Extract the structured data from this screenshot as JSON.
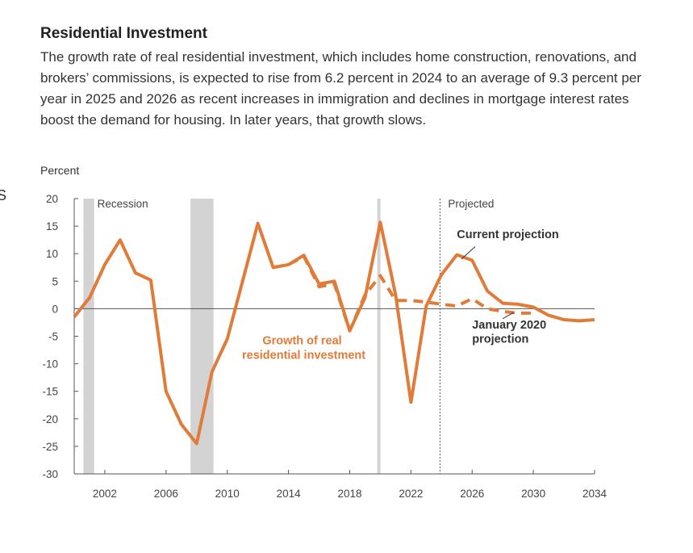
{
  "edge_glyph": "S",
  "title": "Residential Investment",
  "subtitle": "The growth rate of real residential investment, which includes home construction, renovations, and brokers’ commissions, is expected to rise from 6.2 percent in 2024 to an average of 9.3 percent per year in 2025 and 2026 as recent increases in immigration and declines in mortgage interest rates boost the demand for housing. In later years, that growth slows.",
  "colors": {
    "series": "#e07b39",
    "recession": "#d3d3d3",
    "axis": "#555555",
    "label": "#e07b39",
    "annotation": "#333333"
  },
  "chart_data": {
    "type": "line",
    "title": "",
    "xlabel": "",
    "ylabel": "Percent",
    "xlim": [
      2000,
      2034
    ],
    "ylim": [
      -30,
      20
    ],
    "x_ticks": [
      2002,
      2006,
      2010,
      2014,
      2018,
      2022,
      2026,
      2030,
      2034
    ],
    "y_ticks": [
      20,
      15,
      10,
      5,
      0,
      -5,
      -10,
      -15,
      -20,
      -25,
      -30
    ],
    "recession_label": "Recession",
    "projected_label": "Projected",
    "projected_start": 2023.9,
    "recessions": [
      [
        2000.6,
        2001.3
      ],
      [
        2007.6,
        2009.1
      ],
      [
        2019.8,
        2020.0
      ]
    ],
    "series": [
      {
        "name": "Growth of real residential investment",
        "style": "solid",
        "points": [
          [
            2000,
            -1.5
          ],
          [
            2001,
            2
          ],
          [
            2002,
            8
          ],
          [
            2003,
            12.5
          ],
          [
            2004,
            6.5
          ],
          [
            2005,
            5.2
          ],
          [
            2006,
            -15
          ],
          [
            2007,
            -21
          ],
          [
            2008,
            -24.5
          ],
          [
            2009,
            -11.5
          ],
          [
            2010,
            -5.5
          ],
          [
            2011,
            5
          ],
          [
            2012,
            15.5
          ],
          [
            2013,
            7.5
          ],
          [
            2014,
            8
          ],
          [
            2015,
            9.7
          ],
          [
            2016,
            4.5
          ],
          [
            2017,
            5
          ],
          [
            2018,
            -4
          ],
          [
            2019,
            2
          ],
          [
            2020,
            15.7
          ],
          [
            2021,
            2.5
          ],
          [
            2022,
            -17
          ],
          [
            2023,
            0.5
          ],
          [
            2024,
            6.2
          ],
          [
            2025,
            9.8
          ],
          [
            2026,
            8.8
          ],
          [
            2027,
            3.2
          ],
          [
            2028,
            1
          ],
          [
            2029,
            0.8
          ],
          [
            2030,
            0.3
          ],
          [
            2031,
            -1.2
          ],
          [
            2032,
            -2
          ],
          [
            2033,
            -2.2
          ],
          [
            2034,
            -2
          ]
        ]
      },
      {
        "name": "January 2020 projection",
        "style": "dashed",
        "points": [
          [
            2013,
            7.5
          ],
          [
            2014,
            8
          ],
          [
            2015,
            9.5
          ],
          [
            2016,
            4
          ],
          [
            2017,
            4.5
          ],
          [
            2018,
            -4
          ],
          [
            2019,
            2.5
          ],
          [
            2020,
            6
          ],
          [
            2021,
            1.5
          ],
          [
            2022,
            1.5
          ],
          [
            2023,
            1.2
          ],
          [
            2024,
            0.8
          ],
          [
            2025,
            0.5
          ],
          [
            2026,
            1.8
          ],
          [
            2027,
            0
          ],
          [
            2028,
            -0.5
          ],
          [
            2029,
            -0.8
          ],
          [
            2030,
            -0.8
          ]
        ]
      }
    ],
    "annotations": {
      "series_label": [
        "Growth of real",
        "residential investment"
      ],
      "current": "Current projection",
      "january": [
        "January 2020",
        "projection"
      ]
    }
  }
}
